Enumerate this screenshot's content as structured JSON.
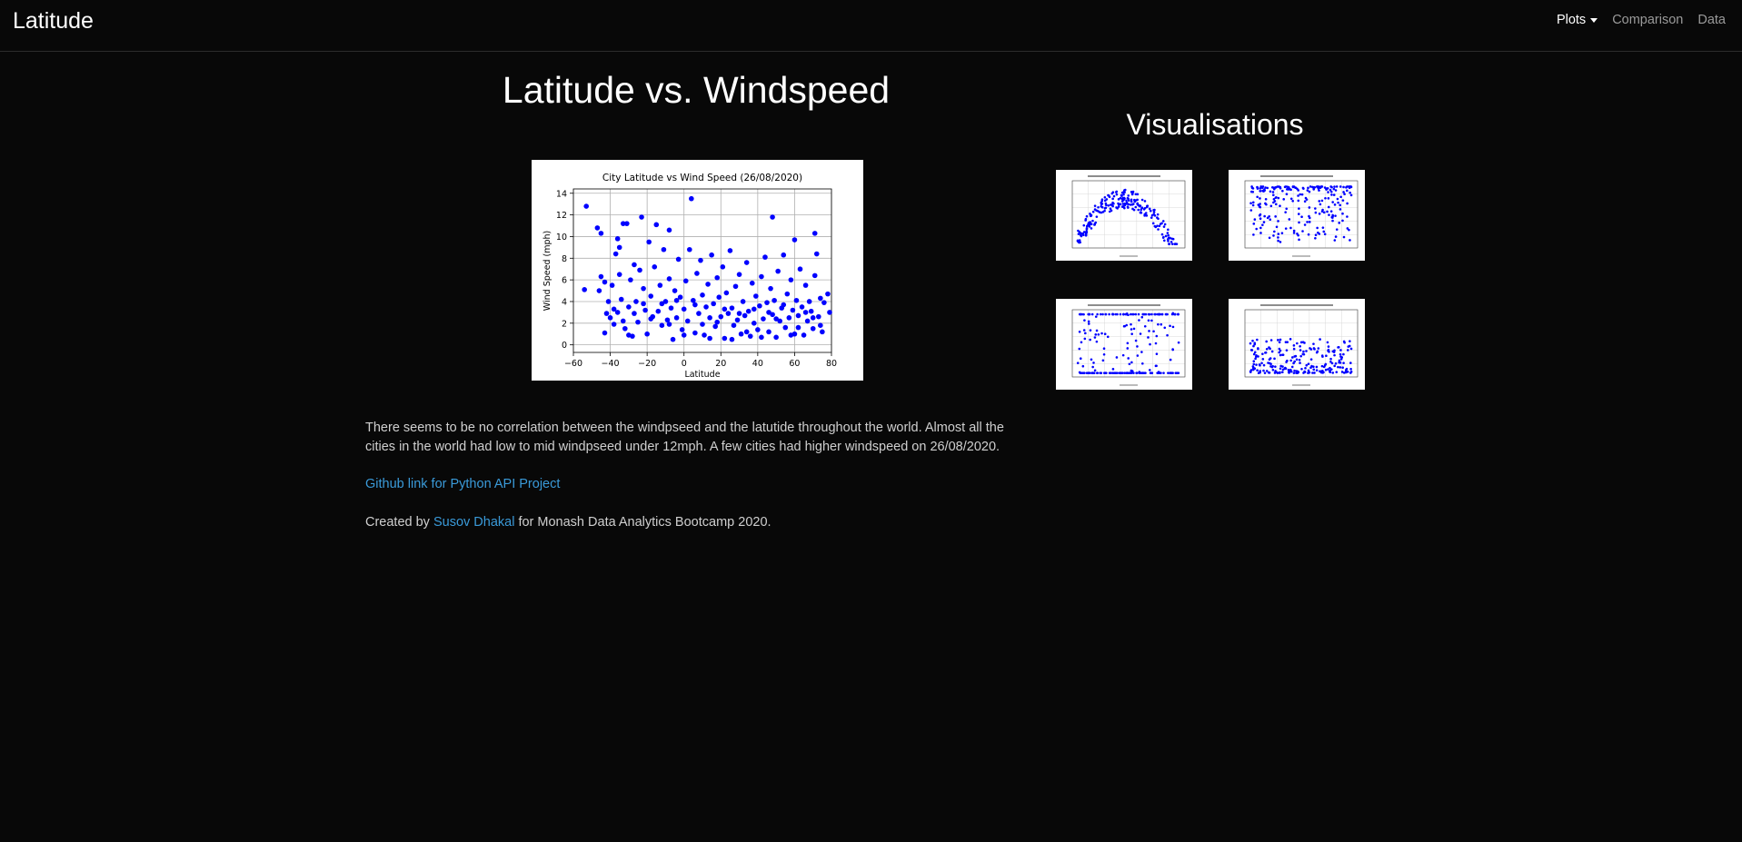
{
  "navbar": {
    "brand": "Latitude",
    "links": [
      {
        "label": "Plots",
        "active": true,
        "dropdown": true
      },
      {
        "label": "Comparison",
        "active": false
      },
      {
        "label": "Data",
        "active": false
      }
    ]
  },
  "main": {
    "title": "Latitude vs. Windspeed",
    "description": "There seems to be no correlation between the windpseed and the latutide throughout the world. Almost all the cities in the world had low to mid windpseed under 12mph. A few cities had higher windspeed on 26/08/2020.",
    "github_link": "Github link for Python API Project",
    "credit_prefix": "Created by ",
    "credit_name": "Susov Dhakal",
    "credit_suffix": " for Monash Data Analytics Bootcamp 2020."
  },
  "sidebar": {
    "title": "Visualisations",
    "thumbnails": [
      "Max Temperature",
      "Humidity",
      "Cloudiness",
      "Wind Speed"
    ]
  },
  "colors": {
    "accent": "#3a9ad9",
    "point": "#0000ff",
    "background": "#080808"
  },
  "chart_data": {
    "type": "scatter",
    "title": "City Latitude vs Wind Speed (26/08/2020)",
    "xlabel": "Latitude",
    "ylabel": "Wind Speed (mph)",
    "xlim": [
      -60,
      80
    ],
    "ylim": [
      -0.7,
      14.4
    ],
    "xticks": [
      "-60",
      "-40",
      "-20",
      "0",
      "20",
      "40",
      "60",
      "80"
    ],
    "xtick_values": [
      -60,
      -40,
      -20,
      0,
      20,
      40,
      60,
      80
    ],
    "yticks": [
      "0",
      "2",
      "4",
      "6",
      "8",
      "10",
      "12",
      "14"
    ],
    "ytick_values": [
      0,
      2,
      4,
      6,
      8,
      10,
      12,
      14
    ],
    "grid": true,
    "points": [
      [
        -54,
        5.1
      ],
      [
        -53,
        12.8
      ],
      [
        -47,
        10.8
      ],
      [
        -46,
        5.0
      ],
      [
        -45,
        10.3
      ],
      [
        -45,
        6.3
      ],
      [
        -43,
        5.8
      ],
      [
        -42,
        2.9
      ],
      [
        -43,
        1.1
      ],
      [
        -40,
        2.5
      ],
      [
        -39,
        5.5
      ],
      [
        -38,
        3.3
      ],
      [
        -37,
        8.4
      ],
      [
        -36,
        9.8
      ],
      [
        -35,
        9.0
      ],
      [
        -35,
        6.5
      ],
      [
        -34,
        4.2
      ],
      [
        -33,
        11.2
      ],
      [
        -33,
        2.2
      ],
      [
        -32,
        1.5
      ],
      [
        -31,
        11.2
      ],
      [
        -30,
        3.5
      ],
      [
        -29,
        6.0
      ],
      [
        -28,
        0.8
      ],
      [
        -27,
        7.4
      ],
      [
        -26,
        4.0
      ],
      [
        -25,
        2.1
      ],
      [
        -24,
        6.9
      ],
      [
        -23,
        11.8
      ],
      [
        -22,
        5.2
      ],
      [
        -21,
        3.2
      ],
      [
        -20,
        1.0
      ],
      [
        -19,
        9.5
      ],
      [
        -18,
        4.5
      ],
      [
        -17,
        2.6
      ],
      [
        -16,
        7.2
      ],
      [
        -15,
        11.1
      ],
      [
        -14,
        3.1
      ],
      [
        -13,
        5.5
      ],
      [
        -12,
        1.8
      ],
      [
        -11,
        8.8
      ],
      [
        -10,
        4.0
      ],
      [
        -9,
        2.3
      ],
      [
        -8,
        10.6
      ],
      [
        -8,
        6.1
      ],
      [
        -7,
        3.4
      ],
      [
        -6,
        0.5
      ],
      [
        -5,
        5.0
      ],
      [
        -4,
        2.5
      ],
      [
        -3,
        7.9
      ],
      [
        -2,
        4.4
      ],
      [
        -1,
        1.4
      ],
      [
        0,
        3.3
      ],
      [
        1,
        5.9
      ],
      [
        2,
        2.2
      ],
      [
        3,
        8.8
      ],
      [
        4,
        13.5
      ],
      [
        5,
        4.1
      ],
      [
        6,
        1.1
      ],
      [
        7,
        6.6
      ],
      [
        8,
        2.9
      ],
      [
        9,
        7.8
      ],
      [
        10,
        4.6
      ],
      [
        11,
        0.9
      ],
      [
        12,
        3.5
      ],
      [
        13,
        5.6
      ],
      [
        14,
        2.5
      ],
      [
        15,
        8.3
      ],
      [
        16,
        3.8
      ],
      [
        17,
        1.7
      ],
      [
        18,
        6.2
      ],
      [
        19,
        4.4
      ],
      [
        20,
        2.6
      ],
      [
        21,
        7.2
      ],
      [
        22,
        0.6
      ],
      [
        23,
        4.8
      ],
      [
        24,
        2.9
      ],
      [
        25,
        8.7
      ],
      [
        26,
        3.4
      ],
      [
        27,
        1.8
      ],
      [
        28,
        5.4
      ],
      [
        29,
        2.3
      ],
      [
        30,
        6.5
      ],
      [
        31,
        1.0
      ],
      [
        32,
        4.0
      ],
      [
        33,
        2.7
      ],
      [
        34,
        7.6
      ],
      [
        35,
        3.1
      ],
      [
        36,
        0.8
      ],
      [
        37,
        5.7
      ],
      [
        38,
        2.0
      ],
      [
        39,
        4.5
      ],
      [
        40,
        1.4
      ],
      [
        41,
        3.6
      ],
      [
        42,
        6.3
      ],
      [
        43,
        2.4
      ],
      [
        44,
        8.1
      ],
      [
        45,
        3.9
      ],
      [
        46,
        1.2
      ],
      [
        47,
        5.2
      ],
      [
        48,
        11.8
      ],
      [
        48,
        2.8
      ],
      [
        49,
        4.1
      ],
      [
        50,
        0.7
      ],
      [
        51,
        6.8
      ],
      [
        52,
        2.2
      ],
      [
        53,
        3.4
      ],
      [
        54,
        8.3
      ],
      [
        55,
        1.6
      ],
      [
        56,
        4.7
      ],
      [
        57,
        2.5
      ],
      [
        58,
        6.0
      ],
      [
        59,
        3.2
      ],
      [
        60,
        9.7
      ],
      [
        60,
        1.0
      ],
      [
        61,
        4.1
      ],
      [
        62,
        2.7
      ],
      [
        63,
        7.0
      ],
      [
        64,
        3.5
      ],
      [
        65,
        0.9
      ],
      [
        66,
        5.5
      ],
      [
        67,
        2.2
      ],
      [
        68,
        4.0
      ],
      [
        69,
        3.1
      ],
      [
        70,
        1.5
      ],
      [
        71,
        10.3
      ],
      [
        71,
        6.4
      ],
      [
        72,
        8.4
      ],
      [
        73,
        2.6
      ],
      [
        74,
        4.3
      ],
      [
        75,
        1.2
      ],
      [
        76,
        3.9
      ],
      [
        78,
        4.7
      ],
      [
        79,
        3.0
      ],
      [
        -41,
        4.0
      ],
      [
        -38,
        1.9
      ],
      [
        -36,
        3.0
      ],
      [
        -30,
        0.9
      ],
      [
        -27,
        2.9
      ],
      [
        -22,
        3.8
      ],
      [
        -18,
        2.4
      ],
      [
        -12,
        3.8
      ],
      [
        -8,
        1.9
      ],
      [
        -4,
        4.1
      ],
      [
        0,
        0.9
      ],
      [
        6,
        3.7
      ],
      [
        10,
        1.9
      ],
      [
        14,
        0.6
      ],
      [
        18,
        2.1
      ],
      [
        22,
        3.3
      ],
      [
        26,
        0.5
      ],
      [
        30,
        2.9
      ],
      [
        34,
        1.2
      ],
      [
        38,
        3.3
      ],
      [
        42,
        0.7
      ],
      [
        46,
        3.0
      ],
      [
        50,
        2.4
      ],
      [
        54,
        3.7
      ],
      [
        58,
        0.9
      ],
      [
        62,
        1.6
      ],
      [
        66,
        3.0
      ],
      [
        70,
        2.5
      ],
      [
        74,
        1.8
      ]
    ]
  }
}
